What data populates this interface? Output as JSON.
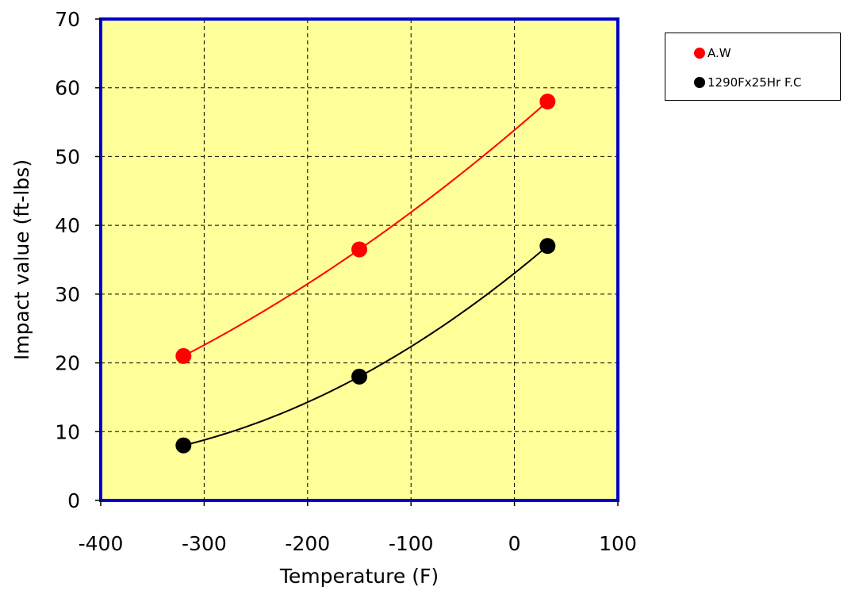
{
  "chart_data": {
    "type": "line",
    "title": "",
    "xlabel": "Temperature (F)",
    "ylabel": "Impact value (ft-lbs)",
    "xlim": [
      -400,
      100
    ],
    "ylim": [
      0,
      70
    ],
    "xticks": [
      "-400",
      "-300",
      "-200",
      "-100",
      "0",
      "100"
    ],
    "yticks": [
      "0",
      "10",
      "20",
      "30",
      "40",
      "50",
      "60",
      "70"
    ],
    "grid": true,
    "legend_position": "right",
    "plot_background": "#ffff99",
    "frame_color": "#0000cc",
    "series": [
      {
        "name": "A.W",
        "color": "#ff0000",
        "x": [
          -320,
          -150,
          32
        ],
        "y": [
          21,
          36.5,
          58
        ]
      },
      {
        "name": "1290Fx25Hr F.C",
        "color": "#000000",
        "x": [
          -320,
          -150,
          32
        ],
        "y": [
          8,
          18,
          37
        ]
      }
    ]
  }
}
